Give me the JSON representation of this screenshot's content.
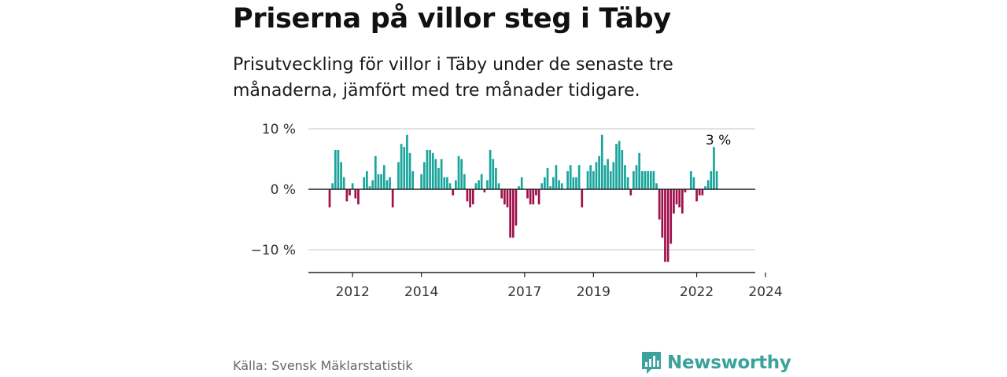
{
  "title": "Priserna på villor steg i Täby",
  "subtitle": "Prisutveckling för villor i Täby under de senaste tre månaderna, jämfört med tre månader tidigare.",
  "source": "Källa: Svensk Mäklarstatistik",
  "brand": "Newsworthy",
  "colors": {
    "positive": "#1aa59c",
    "negative": "#a0104b",
    "grid": "#d9d9d9",
    "axis": "#222222",
    "brand": "#3ba39b"
  },
  "chart_data": {
    "type": "bar",
    "unit": "%",
    "start": "2011-05",
    "frequency": "monthly",
    "ylim": [
      -13,
      10
    ],
    "yticks": [
      10,
      0,
      -10
    ],
    "ytick_labels": [
      "10 %",
      "0 %",
      "−10 %"
    ],
    "xticks": [
      2012,
      2014,
      2017,
      2019,
      2022,
      2024
    ],
    "xtick_labels": [
      "2012",
      "2014",
      "2017",
      "2019",
      "2022",
      "2024"
    ],
    "annotation": "3 %",
    "values": [
      -3,
      1,
      6.5,
      6.5,
      4.5,
      2,
      -2,
      -1,
      1,
      -1.5,
      -2.5,
      0,
      2,
      3,
      0.5,
      1.5,
      5.5,
      2.5,
      2.5,
      4,
      1.5,
      2,
      -3,
      0,
      4.5,
      7.5,
      7,
      9,
      6,
      3,
      0,
      0,
      2.5,
      4.5,
      6.5,
      6.5,
      6,
      5,
      3.5,
      5,
      2,
      2,
      1,
      -1,
      1.5,
      5.5,
      5,
      2.5,
      -2,
      -3,
      -2.5,
      1,
      1.5,
      2.5,
      -0.5,
      1.5,
      6.5,
      5,
      3.5,
      1,
      -1.5,
      -2.5,
      -3,
      -8,
      -8,
      -6,
      0.5,
      2,
      0,
      -1.5,
      -2.5,
      -2.5,
      -1,
      -2.5,
      1,
      2,
      3.5,
      0.5,
      2,
      4,
      1.5,
      1,
      0,
      3,
      4,
      2,
      2,
      4,
      -3,
      0,
      3,
      4,
      3,
      4.5,
      5.5,
      9,
      4,
      5,
      3,
      4.5,
      7.5,
      8,
      6.5,
      4,
      2,
      -1,
      3,
      4,
      6,
      3,
      3,
      3,
      3,
      3,
      1,
      -5,
      -8,
      -12,
      -12,
      -9,
      -4,
      -2.5,
      -3,
      -4,
      -0.5,
      0,
      3,
      2,
      -2,
      -1,
      -1,
      0.5,
      1.5,
      3,
      7,
      3
    ],
    "title": "Priserna på villor steg i Täby",
    "xlabel": "",
    "ylabel": ""
  }
}
